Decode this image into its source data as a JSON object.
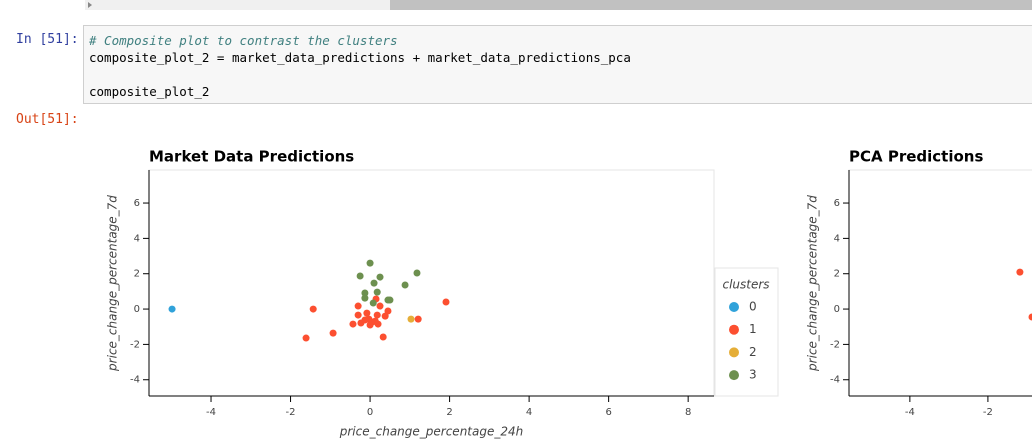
{
  "notebook": {
    "input_prompt": "In [51]:",
    "output_prompt": "Out[51]:",
    "code_lines": [
      "# Composite plot to contrast the clusters",
      "composite_plot_2 = market_data_predictions + market_data_predictions_pca",
      "composite_plot_2"
    ]
  },
  "chart_data": [
    {
      "type": "scatter",
      "title": "Market Data Predictions",
      "x_label": "price_change_percentage_24h",
      "y_label": "price_change_percentage_7d",
      "xlim": [
        -5.56,
        8.65
      ],
      "ylim": [
        -4.92,
        7.87
      ],
      "xticks": [
        -4,
        -2,
        0,
        2,
        4,
        6,
        8
      ],
      "yticks": [
        -4,
        -2,
        0,
        2,
        4,
        6
      ],
      "legend_title": "clusters",
      "series": [
        {
          "name": "0",
          "color": "#30a2da",
          "x": [
            -4.98
          ],
          "values": [
            0
          ]
        },
        {
          "name": "1",
          "color": "#fc4f30",
          "x": [
            -1.43,
            -1.61,
            -0.93,
            1.91,
            1.21,
            0.33,
            -0.3,
            -0.3,
            -0.43,
            -0.23,
            -0.08,
            -0.03,
            0.05,
            0.13,
            0.18,
            0.25,
            0.38,
            0.45,
            0.15,
            0,
            0.2,
            -0.13
          ],
          "values": [
            0,
            -1.64,
            -1.36,
            0.4,
            -0.57,
            -1.58,
            0.17,
            -0.34,
            -0.85,
            -0.79,
            -0.23,
            -0.57,
            -0.74,
            -0.68,
            -0.34,
            0.17,
            -0.4,
            -0.11,
            0.57,
            -0.9,
            -0.85,
            -0.62
          ]
        },
        {
          "name": "2",
          "color": "#e5ae38",
          "x": [
            1.03
          ],
          "values": [
            -0.57
          ]
        },
        {
          "name": "3",
          "color": "#6d904f",
          "x": [
            0,
            -0.25,
            0.25,
            0.1,
            -0.13,
            0.18,
            -0.13,
            0.88,
            1.18,
            0.45,
            0.08,
            0.5
          ],
          "values": [
            2.6,
            1.87,
            1.81,
            1.47,
            0.91,
            0.96,
            0.62,
            1.36,
            2.04,
            0.51,
            0.34,
            0.51
          ]
        }
      ]
    },
    {
      "type": "scatter",
      "title": "PCA Predictions",
      "y_label": "price_change_percentage_7d",
      "xlim": [
        -5.56,
        -0.87
      ],
      "ylim": [
        -4.92,
        7.87
      ],
      "xticks": [
        -4,
        -2
      ],
      "yticks": [
        -4,
        -2,
        0,
        2,
        4,
        6
      ],
      "series": [
        {
          "color": "#fc4f30",
          "x": [
            -1.18,
            -0.87
          ],
          "values": [
            2.09,
            -0.45
          ]
        }
      ]
    }
  ]
}
